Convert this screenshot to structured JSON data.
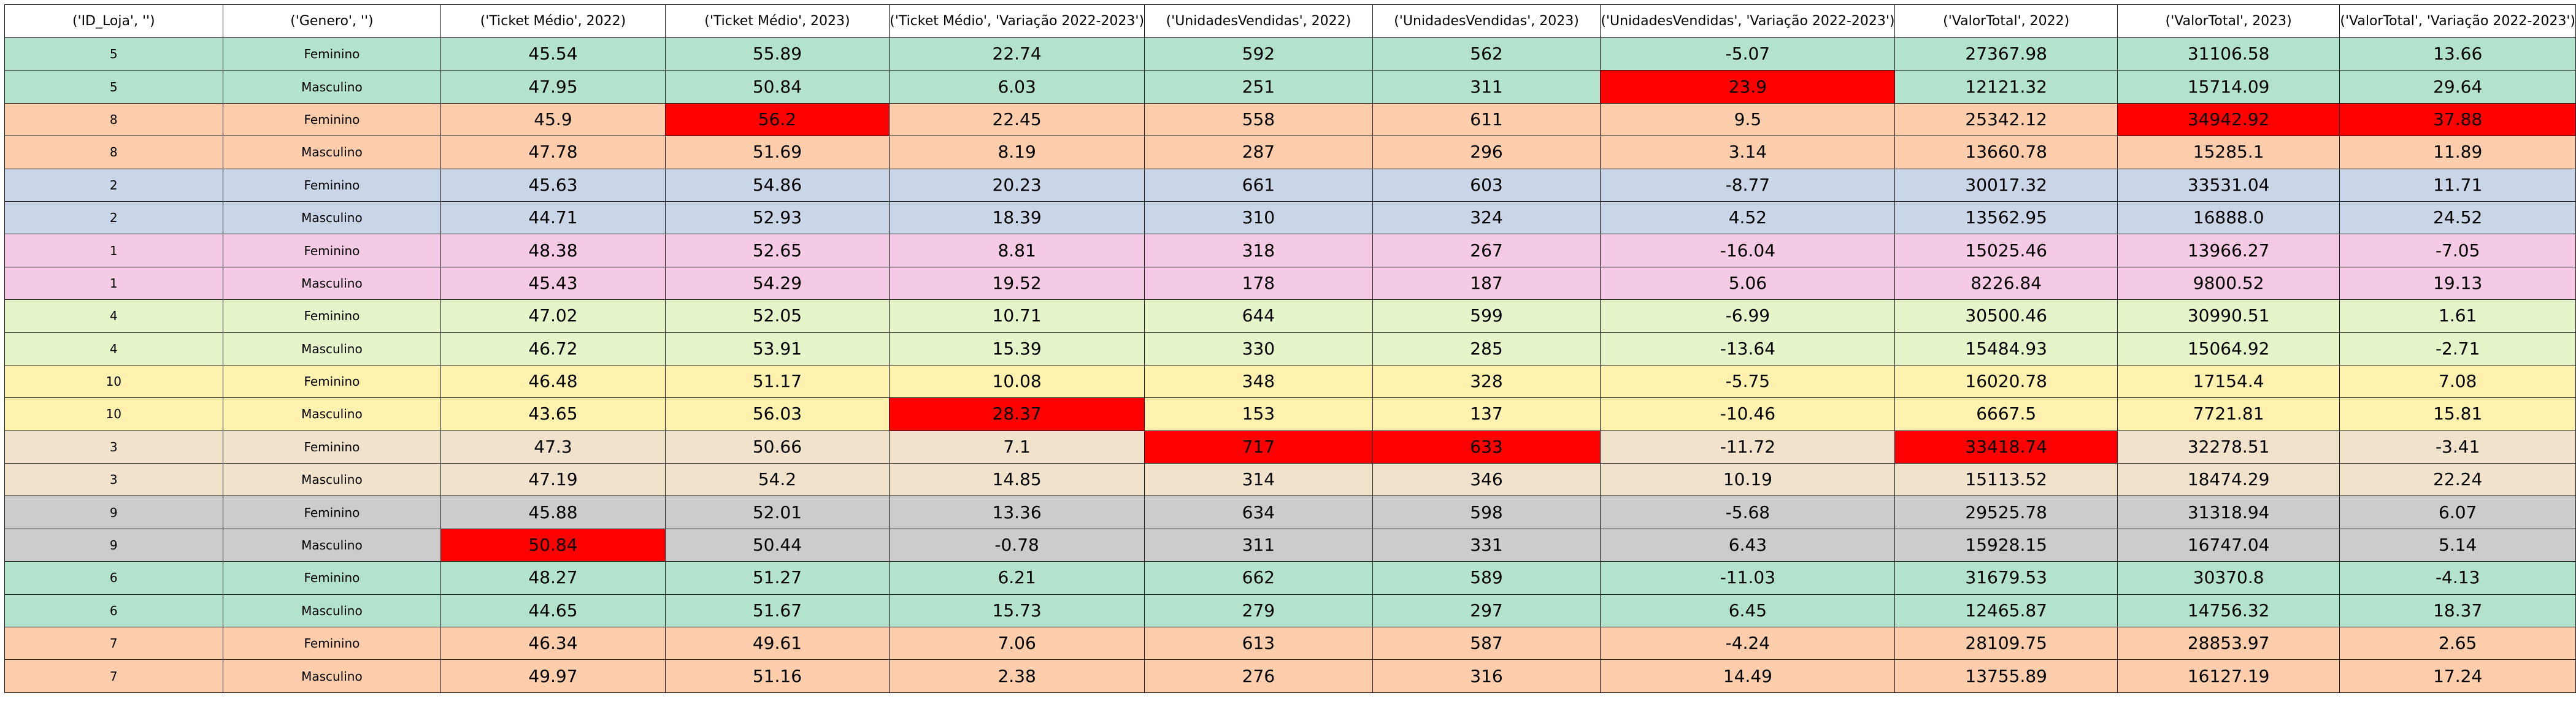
{
  "chart_data": {
    "type": "table",
    "columns": [
      "('ID_Loja', '')",
      "('Genero', '')",
      "('Ticket Médio', 2022)",
      "('Ticket Médio', 2023)",
      "('Ticket Médio', 'Variação 2022-2023')",
      "('UnidadesVendidas', 2022)",
      "('UnidadesVendidas', 2023)",
      "('UnidadesVendidas', 'Variação 2022-2023')",
      "('ValorTotal', 2022)",
      "('ValorTotal', 2023)",
      "('ValorTotal', 'Variação 2022-2023')"
    ],
    "rows": [
      [
        "5",
        "Feminino",
        "45.54",
        "55.89",
        "22.74",
        "592",
        "562",
        "-5.07",
        "27367.98",
        "31106.58",
        "13.66"
      ],
      [
        "5",
        "Masculino",
        "47.95",
        "50.84",
        "6.03",
        "251",
        "311",
        "23.9",
        "12121.32",
        "15714.09",
        "29.64"
      ],
      [
        "8",
        "Feminino",
        "45.9",
        "56.2",
        "22.45",
        "558",
        "611",
        "9.5",
        "25342.12",
        "34942.92",
        "37.88"
      ],
      [
        "8",
        "Masculino",
        "47.78",
        "51.69",
        "8.19",
        "287",
        "296",
        "3.14",
        "13660.78",
        "15285.1",
        "11.89"
      ],
      [
        "2",
        "Feminino",
        "45.63",
        "54.86",
        "20.23",
        "661",
        "603",
        "-8.77",
        "30017.32",
        "33531.04",
        "11.71"
      ],
      [
        "2",
        "Masculino",
        "44.71",
        "52.93",
        "18.39",
        "310",
        "324",
        "4.52",
        "13562.95",
        "16888.0",
        "24.52"
      ],
      [
        "1",
        "Feminino",
        "48.38",
        "52.65",
        "8.81",
        "318",
        "267",
        "-16.04",
        "15025.46",
        "13966.27",
        "-7.05"
      ],
      [
        "1",
        "Masculino",
        "45.43",
        "54.29",
        "19.52",
        "178",
        "187",
        "5.06",
        "8226.84",
        "9800.52",
        "19.13"
      ],
      [
        "4",
        "Feminino",
        "47.02",
        "52.05",
        "10.71",
        "644",
        "599",
        "-6.99",
        "30500.46",
        "30990.51",
        "1.61"
      ],
      [
        "4",
        "Masculino",
        "46.72",
        "53.91",
        "15.39",
        "330",
        "285",
        "-13.64",
        "15484.93",
        "15064.92",
        "-2.71"
      ],
      [
        "10",
        "Feminino",
        "46.48",
        "51.17",
        "10.08",
        "348",
        "328",
        "-5.75",
        "16020.78",
        "17154.4",
        "7.08"
      ],
      [
        "10",
        "Masculino",
        "43.65",
        "56.03",
        "28.37",
        "153",
        "137",
        "-10.46",
        "6667.5",
        "7721.81",
        "15.81"
      ],
      [
        "3",
        "Feminino",
        "47.3",
        "50.66",
        "7.1",
        "717",
        "633",
        "-11.72",
        "33418.74",
        "32278.51",
        "-3.41"
      ],
      [
        "3",
        "Masculino",
        "47.19",
        "54.2",
        "14.85",
        "314",
        "346",
        "10.19",
        "15113.52",
        "18474.29",
        "22.24"
      ],
      [
        "9",
        "Feminino",
        "45.88",
        "52.01",
        "13.36",
        "634",
        "598",
        "-5.68",
        "29525.78",
        "31318.94",
        "6.07"
      ],
      [
        "9",
        "Masculino",
        "50.84",
        "50.44",
        "-0.78",
        "311",
        "331",
        "6.43",
        "15928.15",
        "16747.04",
        "5.14"
      ],
      [
        "6",
        "Feminino",
        "48.27",
        "51.27",
        "6.21",
        "662",
        "589",
        "-11.03",
        "31679.53",
        "30370.8",
        "-4.13"
      ],
      [
        "6",
        "Masculino",
        "44.65",
        "51.67",
        "15.73",
        "279",
        "297",
        "6.45",
        "12465.87",
        "14756.32",
        "18.37"
      ],
      [
        "7",
        "Feminino",
        "46.34",
        "49.61",
        "7.06",
        "613",
        "587",
        "-4.24",
        "28109.75",
        "28853.97",
        "2.65"
      ],
      [
        "7",
        "Masculino",
        "49.97",
        "51.16",
        "2.38",
        "276",
        "316",
        "14.49",
        "13755.89",
        "16127.19",
        "17.24"
      ]
    ],
    "row_colors": [
      "#b3e2cd",
      "#b3e2cd",
      "#fdcdac",
      "#fdcdac",
      "#cbd5e8",
      "#cbd5e8",
      "#f4cae4",
      "#f4cae4",
      "#e6f5c9",
      "#e6f5c9",
      "#fff2ae",
      "#fff2ae",
      "#f1e2cc",
      "#f1e2cc",
      "#cccccc",
      "#cccccc",
      "#b3e2cd",
      "#b3e2cd",
      "#fdcdac",
      "#fdcdac"
    ],
    "highlight_color": "#ff0000",
    "highlights": [
      [
        1,
        7
      ],
      [
        2,
        3
      ],
      [
        2,
        9
      ],
      [
        2,
        10
      ],
      [
        11,
        4
      ],
      [
        12,
        5
      ],
      [
        12,
        6
      ],
      [
        12,
        8
      ],
      [
        15,
        2
      ]
    ]
  }
}
